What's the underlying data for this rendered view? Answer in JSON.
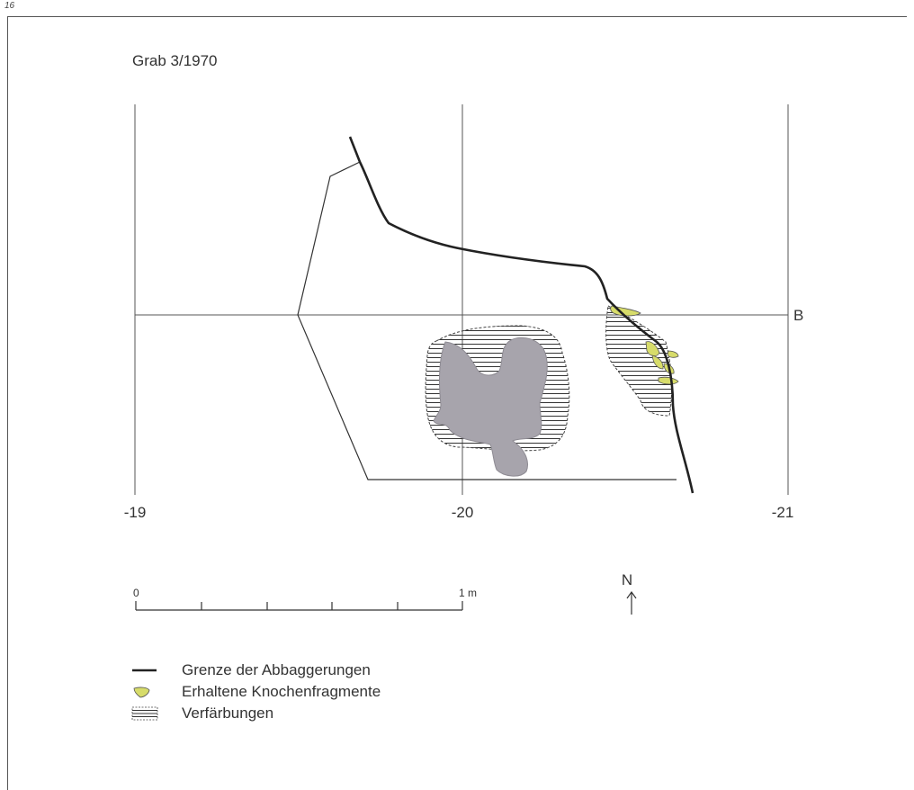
{
  "page_number": "16",
  "title": "Grab 3/1970",
  "grid": {
    "x_labels": [
      "-19",
      "-20",
      "-21"
    ],
    "row_label": "B"
  },
  "scale": {
    "start_label": "0",
    "end_label": "1 m"
  },
  "north": {
    "label": "N",
    "arrow": "north-arrow-icon"
  },
  "colors": {
    "bone_fill": "#d7dc6a",
    "stone_fill": "#a7a4ac",
    "line": "#222222"
  },
  "legend": [
    {
      "icon": "boundary-line-icon",
      "label": "Grenze der Abbaggerungen"
    },
    {
      "icon": "bone-fragment-icon",
      "label": "Erhaltene Knochenfragmente"
    },
    {
      "icon": "hatch-pattern-icon",
      "label": "Verfärbungen"
    }
  ]
}
